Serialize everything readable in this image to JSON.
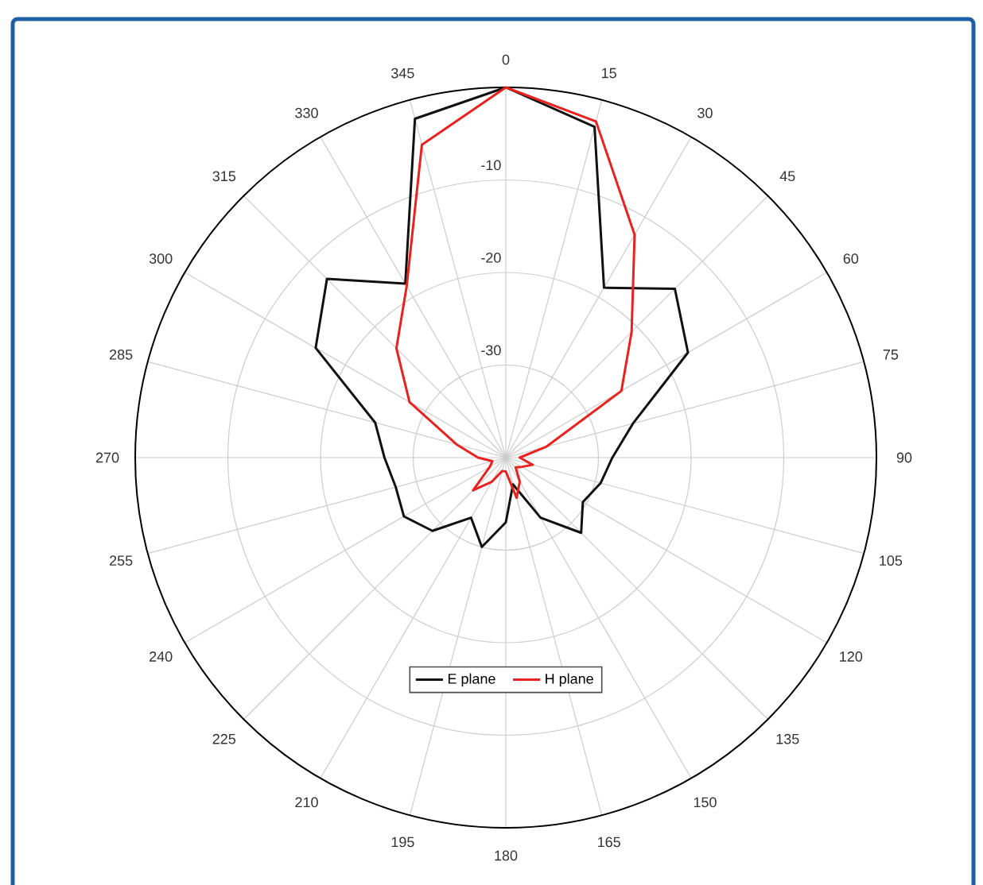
{
  "chart_data": {
    "type": "radar",
    "categories": [
      "0",
      "15",
      "30",
      "45",
      "60",
      "75",
      "90",
      "105",
      "120",
      "135",
      "150",
      "165",
      "180",
      "195",
      "210",
      "225",
      "240",
      "255",
      "270",
      "285",
      "300",
      "315",
      "330",
      "345"
    ],
    "ylim": [
      -40,
      0
    ],
    "yticks": [
      -30,
      -20,
      -10
    ],
    "grid": true,
    "legend": "bottom",
    "series": [
      {
        "name": "E plane",
        "color": "#111111",
        "values": [
          0,
          -3.0,
          -18.8,
          -14.2,
          -17.3,
          -25.8,
          -28.5,
          -29.4,
          -30.4,
          -28.5,
          -32.5,
          -37.0,
          -33,
          -30.0,
          -32.5,
          -28.8,
          -27.3,
          -27.7,
          -26.9,
          -25.4,
          -16.3,
          -12.7,
          -18.3,
          -2.1
        ]
      },
      {
        "name": "H plane",
        "color": "#e8231f",
        "values": [
          0,
          -2.4,
          -12.2,
          -20.8,
          -25.6,
          -35.5,
          -38.5,
          -37,
          -38,
          -38.5,
          -37,
          -35.5,
          -38.5,
          -38.5,
          -37,
          -35,
          -38,
          -38.5,
          -37,
          -34.5,
          -28.0,
          -23.3,
          -18.6,
          -5.0
        ]
      }
    ]
  }
}
